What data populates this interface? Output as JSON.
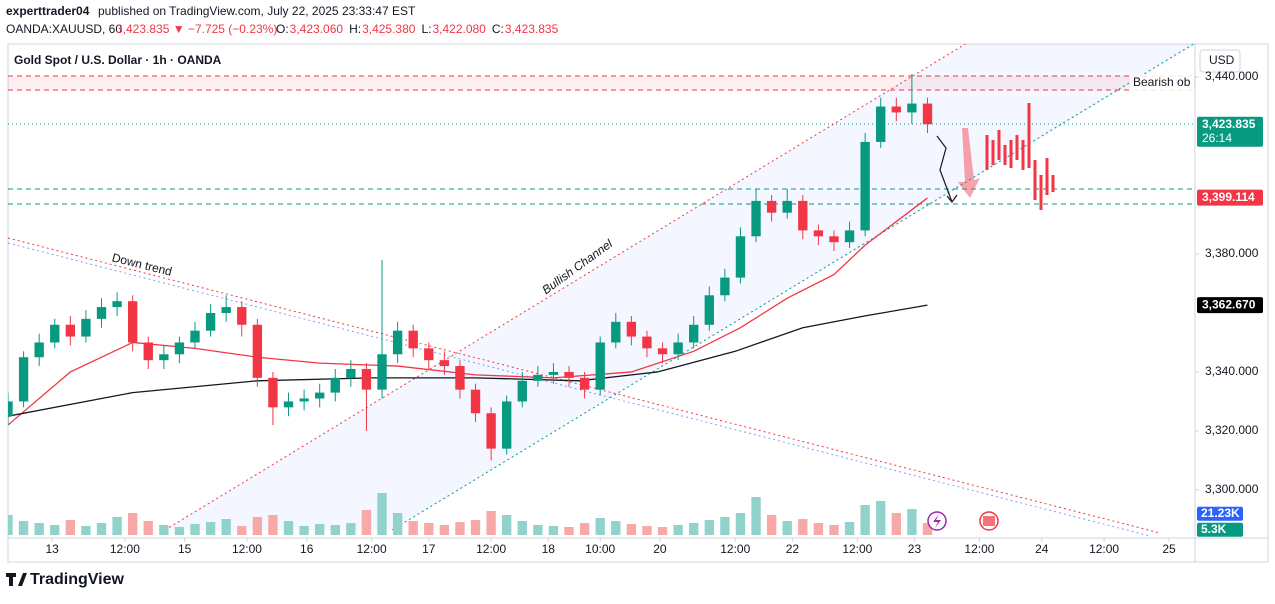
{
  "header": {
    "author": "experttrader04",
    "published": "published on TradingView.com, July 22, 2025 23:33:47 EST",
    "symbol": "OANDA:XAUUSD, 60",
    "change": "3,423.835 ▼ −7.725 (−0.23%)",
    "ohlc": [
      {
        "label": "O:",
        "value": "3,423.060"
      },
      {
        "label": "H:",
        "value": "3,425.380"
      },
      {
        "label": "L:",
        "value": "3,422.080"
      },
      {
        "label": "C:",
        "value": "3,423.835"
      }
    ]
  },
  "chart_data": {
    "type": "candlestick",
    "title": "Gold Spot / U.S. Dollar · 1h · OANDA",
    "currency": "USD",
    "up_color": "#089981",
    "down_color": "#f23645",
    "grid": false,
    "ylim": [
      3283.7,
      3451.2
    ],
    "yticks": [
      {
        "value": 3300,
        "label": "3,300.000"
      },
      {
        "value": 3320,
        "label": "3,320.000"
      },
      {
        "value": 3340,
        "label": "3,340.000"
      },
      {
        "value": 3380,
        "label": "3,380.000"
      },
      {
        "value": 3440,
        "label": "3,440.000"
      }
    ],
    "xlim": [
      0,
      457
    ],
    "xticks": [
      {
        "value": 17,
        "label": "13"
      },
      {
        "value": 45,
        "label": "12:00"
      },
      {
        "value": 68,
        "label": "15"
      },
      {
        "value": 92,
        "label": "12:00"
      },
      {
        "value": 115,
        "label": "16"
      },
      {
        "value": 140,
        "label": "12:00"
      },
      {
        "value": 162,
        "label": "17"
      },
      {
        "value": 186,
        "label": "12:00"
      },
      {
        "value": 208,
        "label": "18"
      },
      {
        "value": 228,
        "label": "10:00"
      },
      {
        "value": 251,
        "label": "20"
      },
      {
        "value": 280,
        "label": "12:00"
      },
      {
        "value": 302,
        "label": "22"
      },
      {
        "value": 327,
        "label": "12:00"
      },
      {
        "value": 349,
        "label": "23"
      },
      {
        "value": 374,
        "label": "12:00"
      },
      {
        "value": 398,
        "label": "24"
      },
      {
        "value": 422,
        "label": "12:00"
      },
      {
        "value": 447,
        "label": "25"
      }
    ],
    "ohlc": {
      "x": [
        0,
        6,
        12,
        18,
        24,
        30,
        36,
        42,
        48,
        54,
        60,
        66,
        72,
        78,
        84,
        90,
        96,
        102,
        108,
        114,
        120,
        126,
        132,
        138,
        144,
        150,
        156,
        162,
        168,
        174,
        180,
        186,
        192,
        198,
        204,
        210,
        216,
        222,
        228,
        234,
        240,
        246,
        252,
        258,
        264,
        270,
        276,
        282,
        288,
        294,
        300,
        306,
        312,
        318,
        324,
        330,
        336,
        342,
        348,
        354
      ],
      "open": [
        3325,
        3330,
        3345,
        3350,
        3356,
        3352,
        3358,
        3362,
        3364,
        3350,
        3344,
        3346,
        3350,
        3354,
        3360,
        3362,
        3356,
        3338,
        3328,
        3330,
        3331,
        3333,
        3338,
        3341,
        3334,
        3346,
        3354,
        3348,
        3344,
        3342,
        3334,
        3326,
        3314,
        3330,
        3337,
        3339,
        3340,
        3338,
        3334,
        3350,
        3357,
        3352,
        3348,
        3346,
        3350,
        3356,
        3366,
        3372,
        3386,
        3398,
        3394,
        3398,
        3388,
        3386,
        3384,
        3388,
        3418,
        3430,
        3428,
        3431
      ],
      "high": [
        3333,
        3347,
        3353,
        3358,
        3359,
        3361,
        3365,
        3367,
        3366,
        3352,
        3349,
        3352,
        3357,
        3363,
        3366,
        3364,
        3358,
        3340,
        3333,
        3334,
        3336,
        3341,
        3344,
        3343,
        3378,
        3357,
        3356,
        3350,
        3347,
        3344,
        3336,
        3328,
        3332,
        3340,
        3342,
        3343,
        3342,
        3340,
        3352,
        3360,
        3359,
        3354,
        3350,
        3353,
        3359,
        3369,
        3375,
        3389,
        3402,
        3400,
        3402,
        3400,
        3390,
        3388,
        3391,
        3421,
        3433,
        3433,
        3441,
        3433
      ],
      "low": [
        3322,
        3328,
        3342,
        3348,
        3349,
        3350,
        3355,
        3359,
        3347,
        3341,
        3341,
        3343,
        3348,
        3352,
        3357,
        3352,
        3335,
        3322,
        3325,
        3327,
        3328,
        3330,
        3335,
        3320,
        3331,
        3343,
        3345,
        3341,
        3339,
        3331,
        3323,
        3310,
        3312,
        3328,
        3335,
        3336,
        3335,
        3331,
        3332,
        3348,
        3349,
        3345,
        3343,
        3344,
        3348,
        3354,
        3364,
        3370,
        3384,
        3391,
        3392,
        3385,
        3383,
        3381,
        3382,
        3386,
        3416,
        3425,
        3424,
        3421
      ],
      "close": [
        3330,
        3345,
        3350,
        3356,
        3352,
        3358,
        3362,
        3364,
        3350,
        3344,
        3346,
        3350,
        3354,
        3360,
        3362,
        3356,
        3338,
        3328,
        3330,
        3331,
        3333,
        3338,
        3341,
        3334,
        3346,
        3354,
        3348,
        3344,
        3342,
        3334,
        3326,
        3314,
        3330,
        3337,
        3339,
        3340,
        3338,
        3334,
        3350,
        3357,
        3352,
        3348,
        3346,
        3350,
        3356,
        3366,
        3372,
        3386,
        3398,
        3394,
        3398,
        3388,
        3386,
        3384,
        3388,
        3418,
        3430,
        3428,
        3431,
        3424
      ]
    },
    "overlays": [
      {
        "color": "#f23645",
        "x": [
          0,
          24,
          48,
          72,
          96,
          120,
          150,
          180,
          210,
          240,
          264,
          282,
          300,
          318,
          330,
          342,
          354
        ],
        "values": [
          3322,
          3340,
          3350,
          3348,
          3345,
          3343,
          3342,
          3339,
          3338,
          3340,
          3347,
          3355,
          3365,
          3373,
          3383,
          3391,
          3399
        ]
      },
      {
        "color": "#131722",
        "x": [
          0,
          48,
          96,
          140,
          180,
          220,
          250,
          280,
          306,
          330,
          354
        ],
        "values": [
          3325,
          3333,
          3337,
          3338,
          3338,
          3337,
          3340,
          3347,
          3355,
          3359,
          3362.67
        ]
      }
    ],
    "volume": {
      "ylim": [
        0,
        60
      ],
      "up_color": "#92d2cc",
      "down_color": "#f7a9a7",
      "values": [
        20,
        14,
        12,
        10,
        15,
        9,
        12,
        18,
        22,
        14,
        10,
        8,
        11,
        13,
        16,
        9,
        18,
        20,
        14,
        9,
        11,
        10,
        12,
        25,
        42,
        22,
        14,
        12,
        10,
        13,
        15,
        24,
        20,
        14,
        10,
        9,
        8,
        12,
        17,
        14,
        11,
        9,
        8,
        10,
        12,
        15,
        18,
        22,
        38,
        20,
        14,
        16,
        12,
        10,
        13,
        30,
        34,
        22,
        26,
        12
      ]
    },
    "price_labels": [
      {
        "value": 3423.835,
        "label": "3,423.835",
        "color": "#089981",
        "countdown": "26:14"
      },
      {
        "value": 3399.114,
        "label": "3,399.114",
        "color": "#f23645"
      },
      {
        "value": 3362.67,
        "label": "3,362.670",
        "color": "#000000"
      }
    ],
    "volume_labels": [
      {
        "value": 21.23,
        "label": "21.23K",
        "color": "#2962ff"
      },
      {
        "value": 5.3,
        "label": "5.3K",
        "color": "#089981"
      }
    ],
    "annotations": [
      "Bearish ob",
      "Down trend",
      "Bullish Channel"
    ]
  },
  "footer": "TradingView"
}
